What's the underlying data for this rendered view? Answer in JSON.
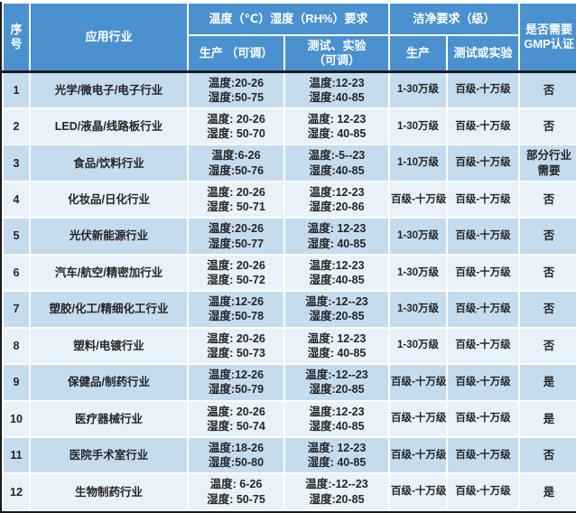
{
  "colors": {
    "header_bg": "#4a91d0",
    "header_text": "#ffffff",
    "row_odd_bg": "#c5dcef",
    "row_even_bg": "#e7f2fa",
    "body_text": "#252525",
    "grid_line": "#ffffff",
    "outer_border": "#1c1c1c"
  },
  "table": {
    "header": {
      "col_no": "序号",
      "col_industry": "应用行业",
      "group_temp_humidity": "温度（℃）湿度（RH%）要求",
      "sub_production_adjustable": "生产 （可调）",
      "sub_test_line1": "测试、实验",
      "sub_test_line2": "（可调）",
      "group_clean": "洁净要求（级）",
      "sub_clean_production": "生产",
      "sub_clean_test": "测试或实验",
      "col_gmp_line1": "是否需要",
      "col_gmp_line2": "GMP认证"
    },
    "rows": [
      {
        "no": "1",
        "industry": "光学/微电子/电子行业",
        "prod_temp": "温度:20-26",
        "prod_humidity": "湿度:50-75",
        "test_temp": "温度:12-23",
        "test_humidity": "湿度:40-85",
        "clean_prod": "1-30万级",
        "clean_test": "百级-十万级",
        "gmp": "否"
      },
      {
        "no": "2",
        "industry": "LED/液晶/线路板行业",
        "prod_temp": "温度: 20-26",
        "prod_humidity": "湿度: 50-70",
        "test_temp": "温度: 12-23",
        "test_humidity": "湿度: 40-85",
        "clean_prod": "1-30万级",
        "clean_test": "百级-十万级",
        "gmp": "否"
      },
      {
        "no": "3",
        "industry": "食品/饮料行业",
        "prod_temp": "温度:6-26",
        "prod_humidity": "湿度:50-76",
        "test_temp": "温度:-5--23",
        "test_humidity": "湿度:40-85",
        "clean_prod": "1-10万级",
        "clean_test": "百级-十万级",
        "gmp": "部分行业需要"
      },
      {
        "no": "4",
        "industry": "化妆品/日化行业",
        "prod_temp": "温度: 20-26",
        "prod_humidity": "湿度: 50-71",
        "test_temp": "温度:12-23",
        "test_humidity": "湿度:20-86",
        "clean_prod": "百级-十万级",
        "clean_test": "百级-十万级",
        "gmp": "否"
      },
      {
        "no": "5",
        "industry": "光伏新能源行业",
        "prod_temp": "温度:20-26",
        "prod_humidity": "湿度:50-77",
        "test_temp": "温度: 12-23",
        "test_humidity": "湿度: 40-85",
        "clean_prod": "1-30万级",
        "clean_test": "百级-十万级",
        "gmp": "否"
      },
      {
        "no": "6",
        "industry": "汽车/航空/精密加行业",
        "prod_temp": "温度: 20-26",
        "prod_humidity": "湿度: 50-72",
        "test_temp": "温度:12-23",
        "test_humidity": "湿度:40-85",
        "clean_prod": "1-30万级",
        "clean_test": "百级-十万级",
        "gmp": "否"
      },
      {
        "no": "7",
        "industry": "塑胶/化工/精细化工行业",
        "prod_temp": "温度:12-26",
        "prod_humidity": "湿度:50-78",
        "test_temp": "温度:-12--23",
        "test_humidity": "湿度:20-85",
        "clean_prod": "1-30万级",
        "clean_test": "百级-十万级",
        "gmp": "否"
      },
      {
        "no": "8",
        "industry": "塑料/电镀行业",
        "prod_temp": "温度: 20-26",
        "prod_humidity": "湿度: 50-73",
        "test_temp": "温度: 12-23",
        "test_humidity": "湿度: 40-85",
        "clean_prod": "1-30万级",
        "clean_test": "百级-十万级",
        "gmp": "否"
      },
      {
        "no": "9",
        "industry": "保健品/制药行业",
        "prod_temp": "温度:12-26",
        "prod_humidity": "湿度:50-79",
        "test_temp": "温度:-12--23",
        "test_humidity": "湿度:20-85",
        "clean_prod": "百级-十万级",
        "clean_test": "百级-十万级",
        "gmp": "是"
      },
      {
        "no": "10",
        "industry": "医疗器械行业",
        "prod_temp": "温度: 20-26",
        "prod_humidity": "湿度: 50-74",
        "test_temp": "温度:12-23",
        "test_humidity": "湿度:40-85",
        "clean_prod": "百级-十万级",
        "clean_test": "百级-十万级",
        "gmp": "是"
      },
      {
        "no": "11",
        "industry": "医院手术室行业",
        "prod_temp": "温度:18-26",
        "prod_humidity": "湿度:50-80",
        "test_temp": "温度: 12-23",
        "test_humidity": "湿度: 40-85",
        "clean_prod": "百级-十万级",
        "clean_test": "百级-十万级",
        "gmp": "否"
      },
      {
        "no": "12",
        "industry": "生物制药行业",
        "prod_temp": "温度: 6-26",
        "prod_humidity": "湿度: 50-75",
        "test_temp": "温度:-12--23",
        "test_humidity": "湿度:20-85",
        "clean_prod": "百级-十万级",
        "clean_test": "百级-十万级",
        "gmp": "是"
      }
    ]
  }
}
